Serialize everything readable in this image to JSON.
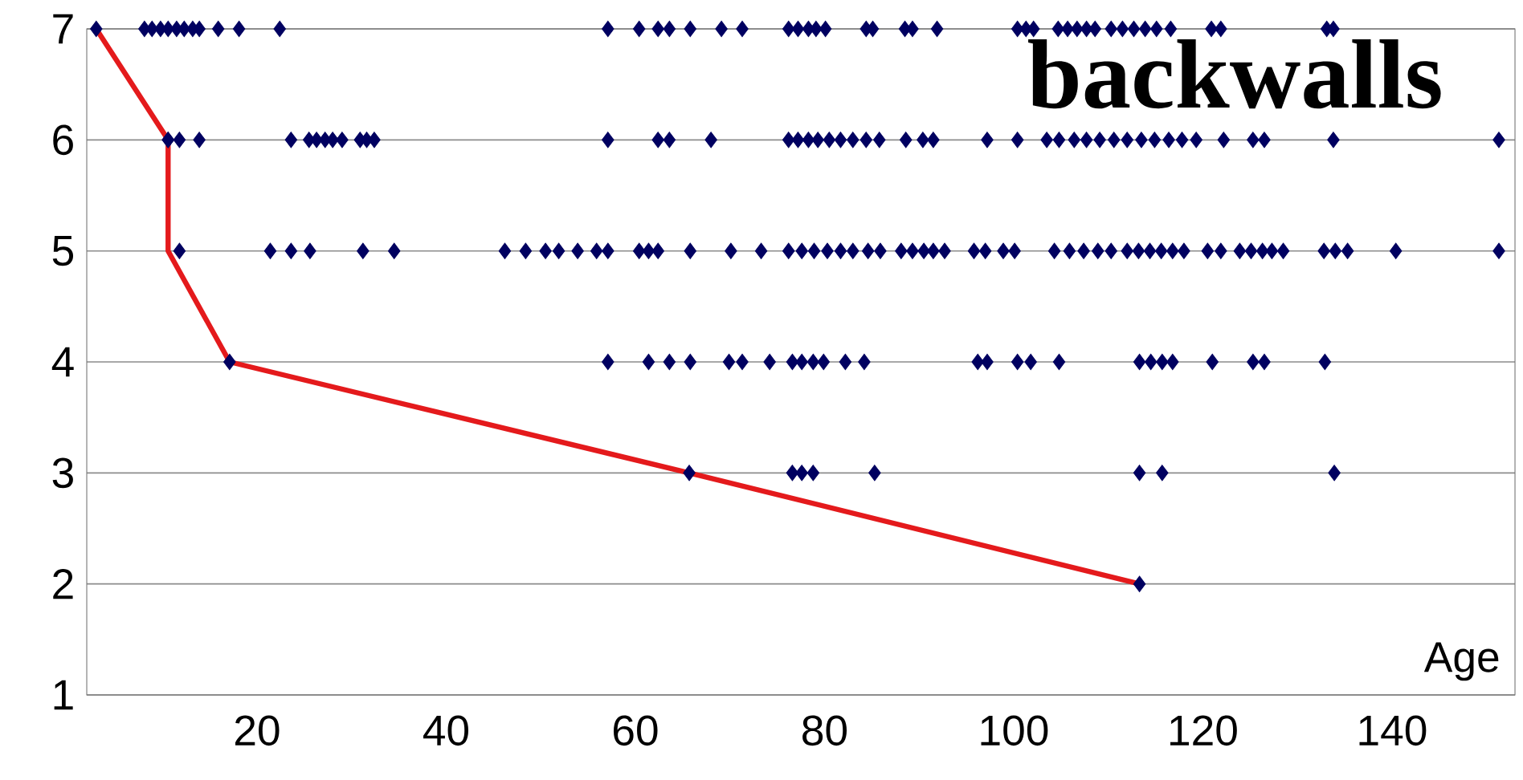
{
  "chart_data": {
    "type": "scatter",
    "title": "backwalls",
    "xlabel": "Age",
    "xlim": [
      2,
      153
    ],
    "ylim": [
      1,
      7
    ],
    "xticks": [
      20,
      40,
      60,
      80,
      100,
      120,
      140
    ],
    "yticks": [
      1,
      2,
      3,
      4,
      5,
      6,
      7
    ],
    "grid": "y",
    "series": [
      {
        "color": "#000060",
        "marker": "diamond",
        "x": [
          3.0,
          8.1,
          8.9,
          9.8,
          10.6,
          11.5,
          12.3,
          13.2,
          13.9,
          15.9,
          18.1,
          22.4,
          57.1,
          60.4,
          62.4,
          63.6,
          65.8,
          69.1,
          71.3,
          76.2,
          77.2,
          78.3,
          79.1,
          80.1,
          84.4,
          85.1,
          88.5,
          89.3,
          91.9,
          100.4,
          101.3,
          102.1,
          104.7,
          105.7,
          106.7,
          107.7,
          108.6,
          110.3,
          111.5,
          112.7,
          113.9,
          115.1,
          116.6,
          120.9,
          121.9,
          133.1,
          133.8,
          10.6,
          11.8,
          13.9,
          23.6,
          25.5,
          26.3,
          27.2,
          28.0,
          29.0,
          30.9,
          31.6,
          32.4,
          57.1,
          62.4,
          63.6,
          68.0,
          76.2,
          77.2,
          78.3,
          79.3,
          80.5,
          81.7,
          83.0,
          84.4,
          85.8,
          88.6,
          90.4,
          91.5,
          97.2,
          100.4,
          103.5,
          104.8,
          106.4,
          107.7,
          109.1,
          110.6,
          112.0,
          113.5,
          114.9,
          116.4,
          117.8,
          119.3,
          122.2,
          125.3,
          126.5,
          133.8,
          151.3,
          10.6,
          11.8,
          21.4,
          23.6,
          25.6,
          31.2,
          34.5,
          46.2,
          48.4,
          50.5,
          51.9,
          53.9,
          55.9,
          57.1,
          60.4,
          61.4,
          62.4,
          65.8,
          70.1,
          73.3,
          76.2,
          77.6,
          78.9,
          80.3,
          81.7,
          83.0,
          84.6,
          85.9,
          88.1,
          89.3,
          90.5,
          91.5,
          92.7,
          95.8,
          97.0,
          98.9,
          100.1,
          104.3,
          105.9,
          107.4,
          108.9,
          110.3,
          112.0,
          113.2,
          114.4,
          115.6,
          116.8,
          118.0,
          120.5,
          121.9,
          123.9,
          125.1,
          126.3,
          127.3,
          128.5,
          132.8,
          134.0,
          135.3,
          140.4,
          151.3,
          17.1,
          57.1,
          61.4,
          63.6,
          65.8,
          69.9,
          71.3,
          74.2,
          76.6,
          77.6,
          78.8,
          79.9,
          82.2,
          84.2,
          96.2,
          97.2,
          100.4,
          101.8,
          104.8,
          113.3,
          114.5,
          115.7,
          116.8,
          121.0,
          125.3,
          126.5,
          132.9,
          65.7,
          76.6,
          77.6,
          78.8,
          85.3,
          113.3,
          115.7,
          133.9,
          113.3
        ],
        "values": [
          7,
          7,
          7,
          7,
          7,
          7,
          7,
          7,
          7,
          7,
          7,
          7,
          7,
          7,
          7,
          7,
          7,
          7,
          7,
          7,
          7,
          7,
          7,
          7,
          7,
          7,
          7,
          7,
          7,
          7,
          7,
          7,
          7,
          7,
          7,
          7,
          7,
          7,
          7,
          7,
          7,
          7,
          7,
          7,
          7,
          7,
          7,
          6,
          6,
          6,
          6,
          6,
          6,
          6,
          6,
          6,
          6,
          6,
          6,
          6,
          6,
          6,
          6,
          6,
          6,
          6,
          6,
          6,
          6,
          6,
          6,
          6,
          6,
          6,
          6,
          6,
          6,
          6,
          6,
          6,
          6,
          6,
          6,
          6,
          6,
          6,
          6,
          6,
          6,
          6,
          6,
          6,
          6,
          6,
          6,
          5,
          5,
          5,
          5,
          5,
          5,
          5,
          5,
          5,
          5,
          5,
          5,
          5,
          5,
          5,
          5,
          5,
          5,
          5,
          5,
          5,
          5,
          5,
          5,
          5,
          5,
          5,
          5,
          5,
          5,
          5,
          5,
          5,
          5,
          5,
          5,
          5,
          5,
          5,
          5,
          5,
          5,
          5,
          5,
          5,
          5,
          5,
          5,
          5,
          5,
          5,
          5,
          5,
          5,
          5,
          5,
          5,
          5,
          5,
          4,
          4,
          4,
          4,
          4,
          4,
          4,
          4,
          4,
          4,
          4,
          4,
          4,
          4,
          4,
          4,
          4,
          4,
          4,
          4,
          4,
          4,
          4,
          4,
          4,
          4,
          4,
          3,
          3,
          3,
          3,
          3,
          3,
          3,
          3,
          2
        ]
      },
      {
        "type": "line",
        "color": "#e41a1c",
        "marker": "none",
        "line_style": "solid",
        "x": [
          3.0,
          10.6,
          10.6,
          17.1,
          65.7,
          113.3
        ],
        "values": [
          7,
          6,
          5,
          4,
          3,
          2
        ]
      }
    ]
  }
}
